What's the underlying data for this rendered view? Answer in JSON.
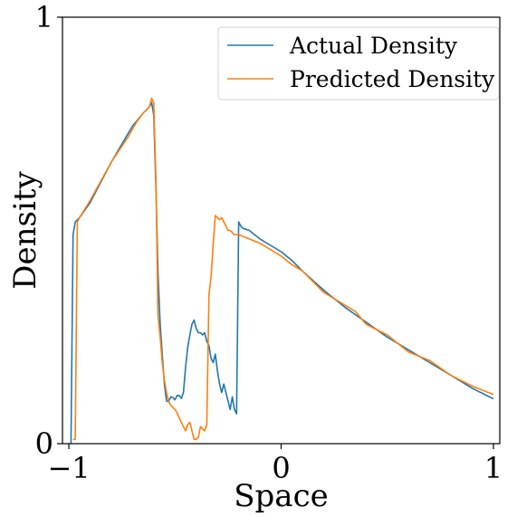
{
  "chart_data": {
    "type": "line",
    "xlabel": "Space",
    "ylabel": "Density",
    "xlim": [
      -1.03,
      1.03
    ],
    "ylim": [
      0,
      1
    ],
    "xticks": [
      -1,
      0,
      1
    ],
    "xtick_labels": [
      "−1",
      "0",
      "1"
    ],
    "yticks": [
      0,
      1
    ],
    "ytick_labels": [
      "0",
      "1"
    ],
    "grid": false,
    "legend_position": "top-right",
    "series": [
      {
        "name": "Actual Density",
        "color": "#1f77b4",
        "x": [
          -0.99,
          -0.98,
          -0.97,
          -0.95,
          -0.9,
          -0.8,
          -0.7,
          -0.65,
          -0.62,
          -0.61,
          -0.6,
          -0.59,
          -0.58,
          -0.57,
          -0.55,
          -0.54,
          -0.53,
          -0.52,
          -0.51,
          -0.5,
          -0.49,
          -0.48,
          -0.47,
          -0.46,
          -0.45,
          -0.44,
          -0.43,
          -0.42,
          -0.41,
          -0.4,
          -0.39,
          -0.38,
          -0.37,
          -0.36,
          -0.35,
          -0.34,
          -0.33,
          -0.32,
          -0.31,
          -0.3,
          -0.29,
          -0.28,
          -0.27,
          -0.26,
          -0.25,
          -0.24,
          -0.23,
          -0.22,
          -0.21,
          -0.2,
          -0.19,
          -0.18,
          -0.15,
          -0.1,
          -0.05,
          0.0,
          0.05,
          0.1,
          0.2,
          0.3,
          0.4,
          0.5,
          0.6,
          0.7,
          0.8,
          0.9,
          1.0
        ],
        "y": [
          0.0,
          0.49,
          0.52,
          0.53,
          0.565,
          0.66,
          0.745,
          0.775,
          0.79,
          0.8,
          0.77,
          0.6,
          0.4,
          0.28,
          0.14,
          0.1,
          0.098,
          0.11,
          0.108,
          0.103,
          0.113,
          0.113,
          0.106,
          0.12,
          0.18,
          0.225,
          0.255,
          0.28,
          0.29,
          0.27,
          0.26,
          0.26,
          0.255,
          0.26,
          0.24,
          0.23,
          0.2,
          0.19,
          0.21,
          0.17,
          0.14,
          0.12,
          0.14,
          0.12,
          0.1,
          0.08,
          0.11,
          0.08,
          0.07,
          0.52,
          0.51,
          0.505,
          0.5,
          0.48,
          0.465,
          0.45,
          0.43,
          0.405,
          0.36,
          0.32,
          0.285,
          0.25,
          0.22,
          0.19,
          0.16,
          0.13,
          0.105
        ]
      },
      {
        "name": "Predicted Density",
        "color": "#ff7f0e",
        "x": [
          -0.98,
          -0.97,
          -0.96,
          -0.95,
          -0.9,
          -0.8,
          -0.72,
          -0.68,
          -0.65,
          -0.62,
          -0.61,
          -0.6,
          -0.59,
          -0.58,
          -0.57,
          -0.56,
          -0.55,
          -0.54,
          -0.53,
          -0.52,
          -0.51,
          -0.5,
          -0.49,
          -0.48,
          -0.47,
          -0.46,
          -0.45,
          -0.44,
          -0.43,
          -0.42,
          -0.41,
          -0.4,
          -0.39,
          -0.38,
          -0.37,
          -0.36,
          -0.35,
          -0.34,
          -0.33,
          -0.32,
          -0.31,
          -0.3,
          -0.29,
          -0.28,
          -0.27,
          -0.26,
          -0.25,
          -0.24,
          -0.23,
          -0.22,
          -0.2,
          -0.15,
          -0.1,
          -0.05,
          0.0,
          0.05,
          0.1,
          0.15,
          0.2,
          0.25,
          0.3,
          0.35,
          0.4,
          0.5,
          0.6,
          0.7,
          0.8,
          0.9,
          1.0
        ],
        "y": [
          0.01,
          0.01,
          0.52,
          0.53,
          0.57,
          0.66,
          0.72,
          0.755,
          0.775,
          0.79,
          0.81,
          0.8,
          0.62,
          0.3,
          0.25,
          0.19,
          0.15,
          0.12,
          0.1,
          0.09,
          0.085,
          0.08,
          0.072,
          0.06,
          0.05,
          0.04,
          0.03,
          0.045,
          0.05,
          0.03,
          0.01,
          0.01,
          0.015,
          0.04,
          0.035,
          0.03,
          0.045,
          0.35,
          0.39,
          0.47,
          0.535,
          0.53,
          0.525,
          0.53,
          0.52,
          0.51,
          0.5,
          0.5,
          0.495,
          0.49,
          0.49,
          0.48,
          0.47,
          0.455,
          0.44,
          0.42,
          0.405,
          0.38,
          0.355,
          0.34,
          0.325,
          0.31,
          0.28,
          0.255,
          0.215,
          0.195,
          0.16,
          0.135,
          0.115
        ]
      }
    ]
  }
}
